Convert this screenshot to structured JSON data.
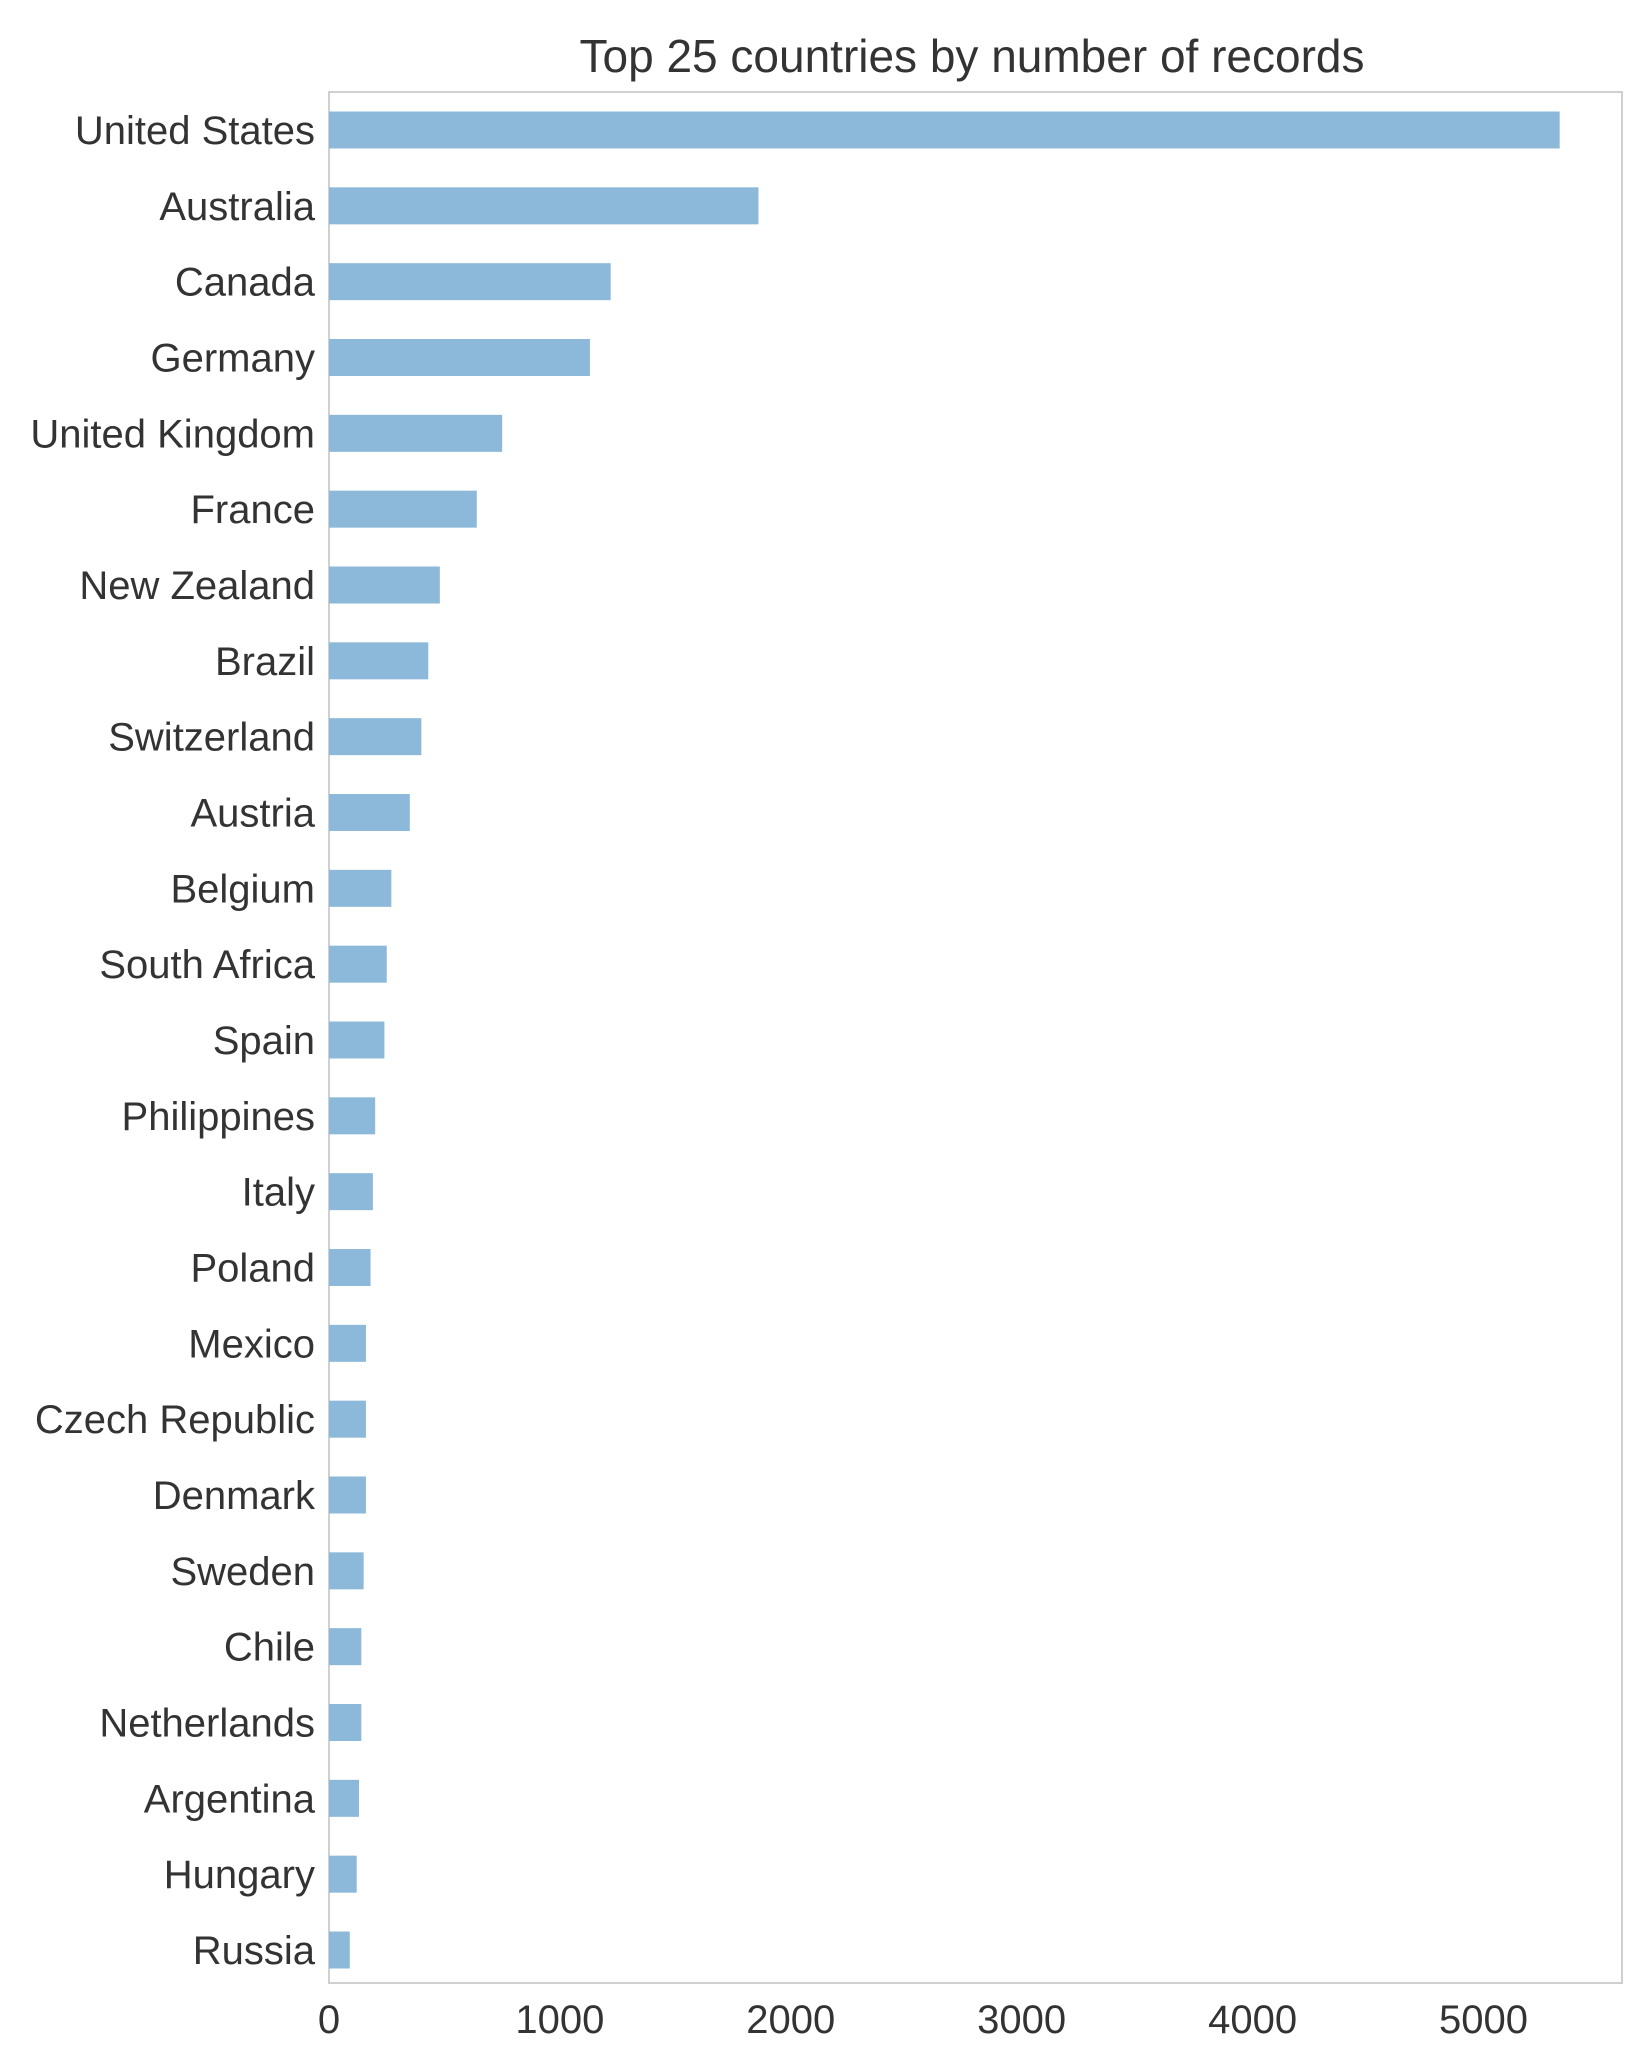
{
  "chart_data": {
    "type": "bar",
    "orientation": "horizontal",
    "title": "Top 25 countries by number of records",
    "xlabel": "",
    "ylabel": "",
    "xlim": [
      0,
      5600
    ],
    "xticks": [
      0,
      1000,
      2000,
      3000,
      4000,
      5000
    ],
    "grid": false,
    "legend": "none",
    "bar_color": "#8cb8da",
    "categories": [
      "United States",
      "Australia",
      "Canada",
      "Germany",
      "United Kingdom",
      "France",
      "New Zealand",
      "Brazil",
      "Switzerland",
      "Austria",
      "Belgium",
      "South Africa",
      "Spain",
      "Philippines",
      "Italy",
      "Poland",
      "Mexico",
      "Czech Republic",
      "Denmark",
      "Sweden",
      "Chile",
      "Netherlands",
      "Argentina",
      "Hungary",
      "Russia"
    ],
    "values": [
      5330,
      1860,
      1220,
      1130,
      750,
      640,
      480,
      430,
      400,
      350,
      270,
      250,
      240,
      200,
      190,
      180,
      160,
      160,
      160,
      150,
      140,
      140,
      130,
      120,
      90
    ]
  }
}
